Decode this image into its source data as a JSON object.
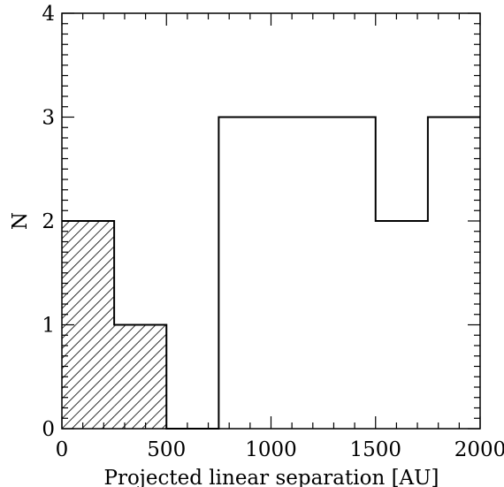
{
  "chart_data": {
    "type": "histogram",
    "xlabel": "Projected linear separation [AU]",
    "ylabel": "N",
    "xlim": [
      0,
      2000
    ],
    "ylim": [
      0,
      4
    ],
    "x_ticks": [
      0,
      500,
      1000,
      1500,
      2000
    ],
    "y_ticks": [
      0,
      1,
      2,
      3,
      4
    ],
    "bin_width": 250,
    "series": [
      {
        "style": "outline",
        "bins": [
          {
            "x0": 0,
            "x1": 250,
            "value": 2
          },
          {
            "x0": 250,
            "x1": 500,
            "value": 1
          },
          {
            "x0": 500,
            "x1": 750,
            "value": 0
          },
          {
            "x0": 750,
            "x1": 1000,
            "value": 3
          },
          {
            "x0": 1000,
            "x1": 1250,
            "value": 3
          },
          {
            "x0": 1250,
            "x1": 1500,
            "value": 3
          },
          {
            "x0": 1500,
            "x1": 1750,
            "value": 2
          },
          {
            "x0": 1750,
            "x1": 2000,
            "value": 3
          }
        ]
      },
      {
        "style": "hatched",
        "bins": [
          {
            "x0": 0,
            "x1": 250,
            "value": 2
          },
          {
            "x0": 250,
            "x1": 500,
            "value": 1
          }
        ]
      }
    ],
    "grid": false
  }
}
